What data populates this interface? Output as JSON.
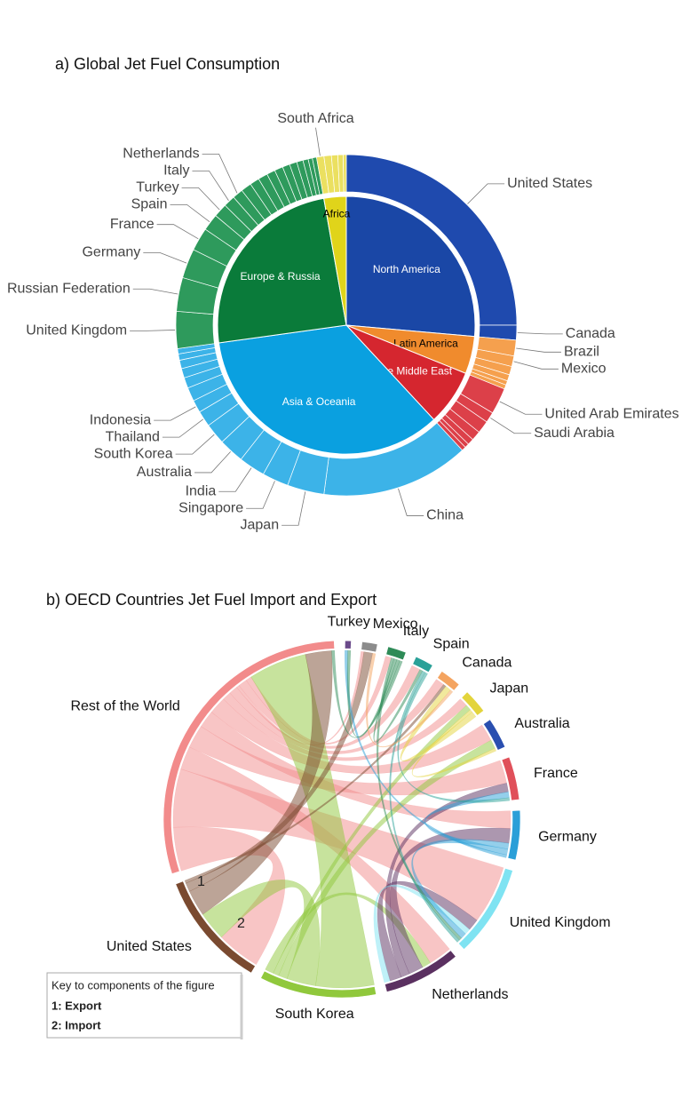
{
  "chart_data": [
    {
      "type": "sunburst",
      "title": "a) Global Jet Fuel Consumption",
      "regions": [
        {
          "name": "North America",
          "value": 26.4,
          "color": "#1a47a6",
          "outer_color": "#1f4aae",
          "children": [
            {
              "name": "United States",
              "value": 25
            },
            {
              "name": "Canada",
              "value": 1.4
            }
          ]
        },
        {
          "name": "Latin America",
          "value": 4.7,
          "color": "#f08b2d",
          "outer_color": "#f5a04e",
          "children": [
            {
              "name": "Brazil",
              "value": 1.5
            },
            {
              "name": "Mexico",
              "value": 1.0
            },
            {
              "name": null,
              "value": 0.8
            },
            {
              "name": null,
              "value": 0.6
            },
            {
              "name": null,
              "value": 0.4
            },
            {
              "name": null,
              "value": 0.4
            }
          ]
        },
        {
          "name": "The Middle East",
          "value": 7.0,
          "color": "#d5262f",
          "outer_color": "#dc4049",
          "children": [
            {
              "name": "United Arab Emirates",
              "value": 2.5
            },
            {
              "name": "Saudi Arabia",
              "value": 1.0
            },
            {
              "name": null,
              "value": 1.2
            },
            {
              "name": null,
              "value": 0.9
            },
            {
              "name": null,
              "value": 0.6
            },
            {
              "name": null,
              "value": 0.4
            },
            {
              "name": null,
              "value": 0.4
            }
          ]
        },
        {
          "name": "Asia & Oceania",
          "value": 34.7,
          "color": "#0aa0e0",
          "outer_color": "#3cb3e8",
          "children": [
            {
              "name": "China",
              "value": 14
            },
            {
              "name": "Japan",
              "value": 3.5
            },
            {
              "name": "Singapore",
              "value": 2.5
            },
            {
              "name": "India",
              "value": 2.5
            },
            {
              "name": "Australia",
              "value": 2.4
            },
            {
              "name": "South Korea",
              "value": 2.0
            },
            {
              "name": "Thailand",
              "value": 1.5
            },
            {
              "name": "Indonesia",
              "value": 1.2
            },
            {
              "name": null,
              "value": 1.3
            },
            {
              "name": null,
              "value": 1.0
            },
            {
              "name": null,
              "value": 0.9
            },
            {
              "name": null,
              "value": 0.8
            },
            {
              "name": null,
              "value": 0.6
            },
            {
              "name": null,
              "value": 0.5
            }
          ]
        },
        {
          "name": "Europe & Russia",
          "value": 24.4,
          "color": "#0a7b3a",
          "outer_color": "#2e9a5c",
          "children": [
            {
              "name": "United Kingdom",
              "value": 3.5
            },
            {
              "name": "Russian Federation",
              "value": 3.2
            },
            {
              "name": "Germany",
              "value": 2.8
            },
            {
              "name": "France",
              "value": 2.2
            },
            {
              "name": "Spain",
              "value": 1.6
            },
            {
              "name": "Turkey",
              "value": 1.3
            },
            {
              "name": "Italy",
              "value": 1.1
            },
            {
              "name": "Netherlands",
              "value": 1.0
            },
            {
              "name": null,
              "value": 1.0
            },
            {
              "name": null,
              "value": 0.9
            },
            {
              "name": null,
              "value": 0.9
            },
            {
              "name": null,
              "value": 0.8
            },
            {
              "name": null,
              "value": 0.8
            },
            {
              "name": null,
              "value": 0.7
            },
            {
              "name": null,
              "value": 0.7
            },
            {
              "name": null,
              "value": 0.6
            },
            {
              "name": null,
              "value": 0.5
            },
            {
              "name": null,
              "value": 0.4
            },
            {
              "name": null,
              "value": 0.4
            }
          ]
        },
        {
          "name": "Africa",
          "value": 2.8,
          "color": "#e0d41a",
          "outer_color": "#ebe060",
          "children": [
            {
              "name": "South Africa",
              "value": 0.7
            },
            {
              "name": null,
              "value": 0.7
            },
            {
              "name": null,
              "value": 0.6
            },
            {
              "name": null,
              "value": 0.5
            },
            {
              "name": null,
              "value": 0.3
            }
          ]
        }
      ]
    },
    {
      "type": "chord",
      "title": "b) OECD Countries Jet Fuel Import and Export",
      "nodes": [
        {
          "name": "Turkey",
          "value": 2,
          "color": "#6a4a8a"
        },
        {
          "name": "Mexico",
          "value": 5,
          "color": "#8c8c8c"
        },
        {
          "name": "Italy",
          "value": 6,
          "color": "#2e8b57"
        },
        {
          "name": "Spain",
          "value": 6,
          "color": "#2aa198"
        },
        {
          "name": "Canada",
          "value": 7,
          "color": "#f4a460"
        },
        {
          "name": "Japan",
          "value": 8,
          "color": "#e3d43c"
        },
        {
          "name": "Australia",
          "value": 10,
          "color": "#2a4fb0"
        },
        {
          "name": "France",
          "value": 14,
          "color": "#e0505a"
        },
        {
          "name": "Germany",
          "value": 16,
          "color": "#2a9fd8"
        },
        {
          "name": "United Kingdom",
          "value": 30,
          "color": "#7fe3f2"
        },
        {
          "name": "Netherlands",
          "value": 25,
          "color": "#5a3060"
        },
        {
          "name": "South Korea",
          "value": 38,
          "color": "#90c83c"
        },
        {
          "name": "United States",
          "value": 38,
          "color": "#7a4a30"
        },
        {
          "name": "Rest of the World",
          "value": 105,
          "color": "#f28b8b"
        }
      ],
      "flows": [
        {
          "from": 13,
          "to": 12,
          "value": 15
        },
        {
          "from": 13,
          "to": 9,
          "value": 20
        },
        {
          "from": 13,
          "to": 10,
          "value": 8
        },
        {
          "from": 13,
          "to": 7,
          "value": 8
        },
        {
          "from": 13,
          "to": 8,
          "value": 6
        },
        {
          "from": 13,
          "to": 6,
          "value": 6
        },
        {
          "from": 13,
          "to": 5,
          "value": 3
        },
        {
          "from": 13,
          "to": 4,
          "value": 3
        },
        {
          "from": 13,
          "to": 1,
          "value": 1
        },
        {
          "from": 13,
          "to": 3,
          "value": 3
        },
        {
          "from": 13,
          "to": 2,
          "value": 2
        },
        {
          "from": 11,
          "to": 13,
          "value": 20
        },
        {
          "from": 11,
          "to": 12,
          "value": 10
        },
        {
          "from": 11,
          "to": 6,
          "value": 3
        },
        {
          "from": 11,
          "to": 5,
          "value": 2
        },
        {
          "from": 11,
          "to": 10,
          "value": 3
        },
        {
          "from": 12,
          "to": 13,
          "value": 9
        },
        {
          "from": 12,
          "to": 1,
          "value": 3
        },
        {
          "from": 12,
          "to": 4,
          "value": 1
        },
        {
          "from": 10,
          "to": 8,
          "value": 5
        },
        {
          "from": 10,
          "to": 7,
          "value": 3
        },
        {
          "from": 10,
          "to": 9,
          "value": 4
        },
        {
          "from": 9,
          "to": 10,
          "value": 2
        },
        {
          "from": 8,
          "to": 9,
          "value": 2
        },
        {
          "from": 8,
          "to": 7,
          "value": 2
        },
        {
          "from": 8,
          "to": 0,
          "value": 1
        },
        {
          "from": 2,
          "to": 9,
          "value": 1
        },
        {
          "from": 2,
          "to": 3,
          "value": 1
        },
        {
          "from": 2,
          "to": 0,
          "value": 1
        },
        {
          "from": 2,
          "to": 13,
          "value": 1
        },
        {
          "from": 3,
          "to": 9,
          "value": 1
        },
        {
          "from": 3,
          "to": 7,
          "value": 1
        },
        {
          "from": 5,
          "to": 6,
          "value": 1
        },
        {
          "from": 5,
          "to": 4,
          "value": 2
        },
        {
          "from": 4,
          "to": 1,
          "value": 1
        }
      ],
      "annotations": [
        "1",
        "2"
      ],
      "key_title": "Key to components of the figure",
      "key": [
        "1: Export",
        "2: Import"
      ]
    }
  ]
}
